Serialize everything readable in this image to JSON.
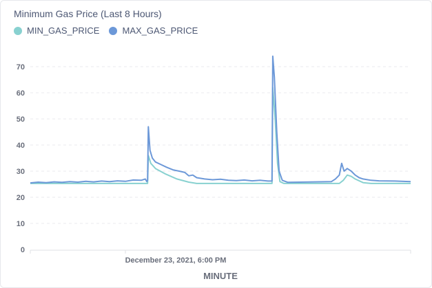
{
  "chart_data": {
    "type": "line",
    "title": "Minimum Gas Price (Last 8 Hours)",
    "xlabel": "MINUTE",
    "x_tick_label": "December 23, 2021, 6:00 PM",
    "x_minutes_range": [
      0,
      480
    ],
    "x_tick_minute": 120,
    "ylim": [
      0,
      75
    ],
    "y_ticks": [
      0,
      10,
      20,
      30,
      40,
      50,
      60,
      70
    ],
    "grid": true,
    "legend": "top-left",
    "series": [
      {
        "name": "MIN_GAS_PRICE",
        "color": "#88d1d0",
        "points": [
          [
            0,
            25.3
          ],
          [
            40,
            25.3
          ],
          [
            80,
            25.3
          ],
          [
            110,
            25.3
          ],
          [
            148,
            25.3
          ],
          [
            149,
            36
          ],
          [
            152,
            33
          ],
          [
            158,
            31
          ],
          [
            170,
            29
          ],
          [
            185,
            27
          ],
          [
            200,
            25.8
          ],
          [
            210,
            25.3
          ],
          [
            260,
            25.3
          ],
          [
            300,
            25.3
          ],
          [
            305,
            25.3
          ],
          [
            306,
            62
          ],
          [
            309,
            50
          ],
          [
            312,
            33
          ],
          [
            315,
            26
          ],
          [
            320,
            25.3
          ],
          [
            360,
            25.3
          ],
          [
            390,
            25.3
          ],
          [
            395,
            26.5
          ],
          [
            400,
            28.5
          ],
          [
            405,
            28
          ],
          [
            410,
            27
          ],
          [
            420,
            25.6
          ],
          [
            430,
            25.3
          ],
          [
            480,
            25.3
          ]
        ]
      },
      {
        "name": "MAX_GAS_PRICE",
        "color": "#6c98d8",
        "points": [
          [
            0,
            25.5
          ],
          [
            10,
            25.8
          ],
          [
            20,
            25.6
          ],
          [
            30,
            25.9
          ],
          [
            40,
            25.7
          ],
          [
            50,
            26
          ],
          [
            60,
            25.8
          ],
          [
            70,
            26.1
          ],
          [
            80,
            25.9
          ],
          [
            90,
            26.2
          ],
          [
            100,
            26
          ],
          [
            110,
            26.3
          ],
          [
            120,
            26.1
          ],
          [
            130,
            26.6
          ],
          [
            140,
            26.5
          ],
          [
            145,
            27
          ],
          [
            147,
            26
          ],
          [
            148,
            26.5
          ],
          [
            149,
            47
          ],
          [
            151,
            38
          ],
          [
            154,
            35
          ],
          [
            158,
            33.5
          ],
          [
            165,
            32.5
          ],
          [
            172,
            31.5
          ],
          [
            180,
            30.5
          ],
          [
            188,
            30
          ],
          [
            195,
            29.5
          ],
          [
            200,
            28.2
          ],
          [
            205,
            28.5
          ],
          [
            210,
            27.5
          ],
          [
            220,
            27
          ],
          [
            230,
            26.7
          ],
          [
            240,
            26.9
          ],
          [
            250,
            26.5
          ],
          [
            260,
            26.4
          ],
          [
            270,
            26.6
          ],
          [
            280,
            26.3
          ],
          [
            290,
            26.5
          ],
          [
            300,
            26.2
          ],
          [
            305,
            26.2
          ],
          [
            306,
            74
          ],
          [
            308,
            66
          ],
          [
            311,
            45
          ],
          [
            314,
            30
          ],
          [
            318,
            26.5
          ],
          [
            325,
            25.7
          ],
          [
            340,
            25.8
          ],
          [
            360,
            25.9
          ],
          [
            380,
            26
          ],
          [
            385,
            27
          ],
          [
            390,
            28.5
          ],
          [
            393,
            33
          ],
          [
            396,
            30
          ],
          [
            400,
            31
          ],
          [
            405,
            30
          ],
          [
            410,
            28.5
          ],
          [
            415,
            27.5
          ],
          [
            420,
            27
          ],
          [
            430,
            26.5
          ],
          [
            440,
            26.3
          ],
          [
            460,
            26.2
          ],
          [
            480,
            26
          ]
        ]
      }
    ]
  }
}
